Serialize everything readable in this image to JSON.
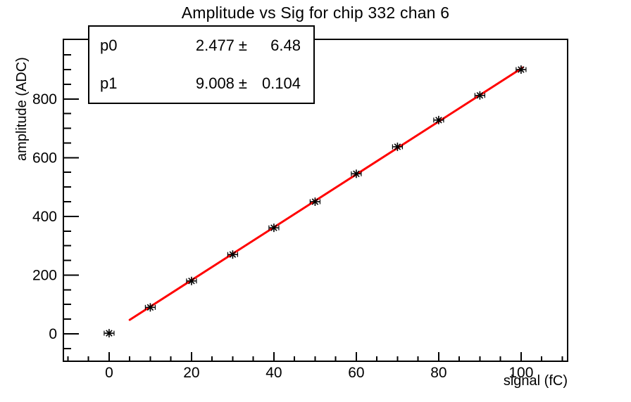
{
  "page": {
    "background_color": "#ffffff",
    "text_color": "#000000"
  },
  "chart_data": {
    "type": "scatter",
    "title": "Amplitude vs Sig for chip 332 chan 6",
    "xlabel": "signal (fC)",
    "ylabel": "amplitude (ADC)",
    "xlim": [
      -11.1,
      111.3
    ],
    "ylim": [
      -93.5,
      1003
    ],
    "x_major_ticks": [
      0,
      20,
      40,
      60,
      80,
      100
    ],
    "x_minor_step": 5,
    "y_major_ticks": [
      0,
      200,
      400,
      600,
      800
    ],
    "y_minor_step": 50,
    "grid": false,
    "x": [
      0,
      10,
      20,
      30,
      40,
      50,
      60,
      70,
      80,
      90,
      100
    ],
    "y": [
      2,
      90,
      180,
      270,
      361,
      450,
      545,
      637,
      728,
      812,
      900
    ],
    "x_error": 1.2,
    "marker": "asterisk",
    "marker_color": "#000000",
    "axis_color": "#000000",
    "fit_line": {
      "p0": 2.477,
      "p1": 9.008,
      "x_start": 5,
      "x_end": 100.4,
      "color": "#ff0000"
    }
  },
  "stats_box": {
    "rows": [
      {
        "label": "p0",
        "value": "2.477",
        "pm": "±",
        "error": "6.48"
      },
      {
        "label": "p1",
        "value": "9.008",
        "pm": "±",
        "error": "0.104"
      }
    ]
  }
}
